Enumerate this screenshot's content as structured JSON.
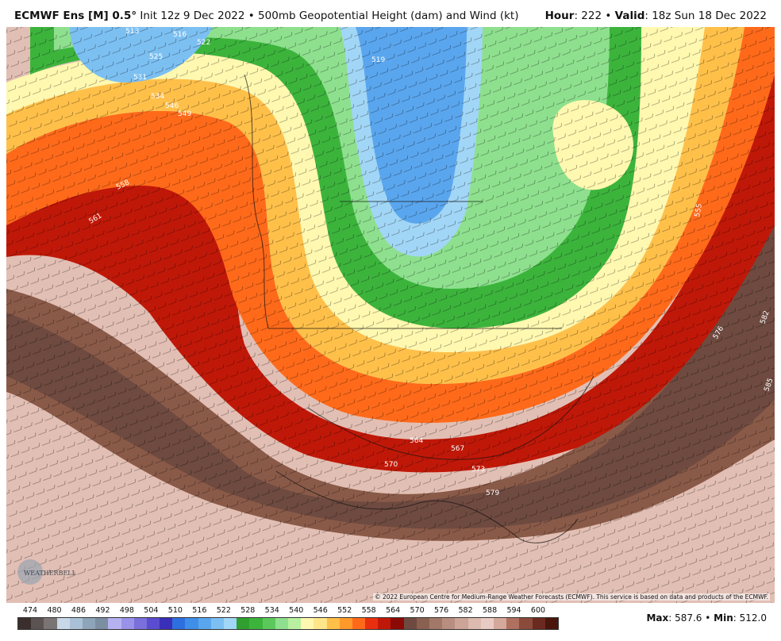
{
  "header": {
    "model_prefix": "ECMWF Ens [M] 0.5",
    "degree_symbol": "°",
    "init": "Init 12z 9 Dec 2022",
    "separator": "•",
    "product": "500mb Geopotential Height (dam) and Wind (kt)",
    "hour_label": "Hour",
    "hour_value": "222",
    "valid_label": "Valid",
    "valid_value": "18z Sun 18 Dec 2022"
  },
  "map": {
    "contour_labels": [
      {
        "text": "513"
      },
      {
        "text": "516"
      },
      {
        "text": "519"
      },
      {
        "text": "522"
      },
      {
        "text": "525"
      },
      {
        "text": "531"
      },
      {
        "text": "534"
      },
      {
        "text": "546"
      },
      {
        "text": "549"
      },
      {
        "text": "558"
      },
      {
        "text": "561"
      },
      {
        "text": "564"
      },
      {
        "text": "567"
      },
      {
        "text": "570"
      },
      {
        "text": "573"
      },
      {
        "text": "576"
      },
      {
        "text": "579"
      },
      {
        "text": "582"
      },
      {
        "text": "555"
      },
      {
        "text": "585"
      }
    ],
    "copyright": "© 2022 European Centre for Medium-Range Weather Forecasts (ECMWF). This service is based on data and products of the ECMWF.",
    "logo_text": "WEATHERBELL"
  },
  "scale": {
    "labels": [
      "474",
      "480",
      "486",
      "492",
      "498",
      "504",
      "510",
      "516",
      "522",
      "528",
      "534",
      "540",
      "546",
      "552",
      "558",
      "564",
      "570",
      "576",
      "582",
      "588",
      "594",
      "600"
    ],
    "colors": [
      "#3a2f2c",
      "#5b5352",
      "#7a7474",
      "#c8d8e8",
      "#a9c0d6",
      "#8ea5b9",
      "#7c8ea2",
      "#b6b2f0",
      "#9a92e8",
      "#7b6fdc",
      "#5b4dcf",
      "#3a2fb8",
      "#2e6fe0",
      "#3f8ee8",
      "#5aa6ee",
      "#7cc0f2",
      "#a2d6f6",
      "#2fa030",
      "#3cb43c",
      "#5cc85c",
      "#8ee08e",
      "#b8f0a0",
      "#fff8b0",
      "#ffe68a",
      "#ffc04a",
      "#ff9a2a",
      "#ff6a1a",
      "#e83010",
      "#c01808",
      "#8b0a06",
      "#6e4a40",
      "#8a6050",
      "#a27868",
      "#b88e80",
      "#cca498",
      "#dcbab0",
      "#e8ccc4",
      "#d4a89a",
      "#b07060",
      "#8c4a3a",
      "#6a2a20",
      "#4a160c"
    ]
  },
  "stats": {
    "max_label": "Max",
    "max_value": "587.6",
    "min_label": "Min",
    "min_value": "512.0"
  }
}
